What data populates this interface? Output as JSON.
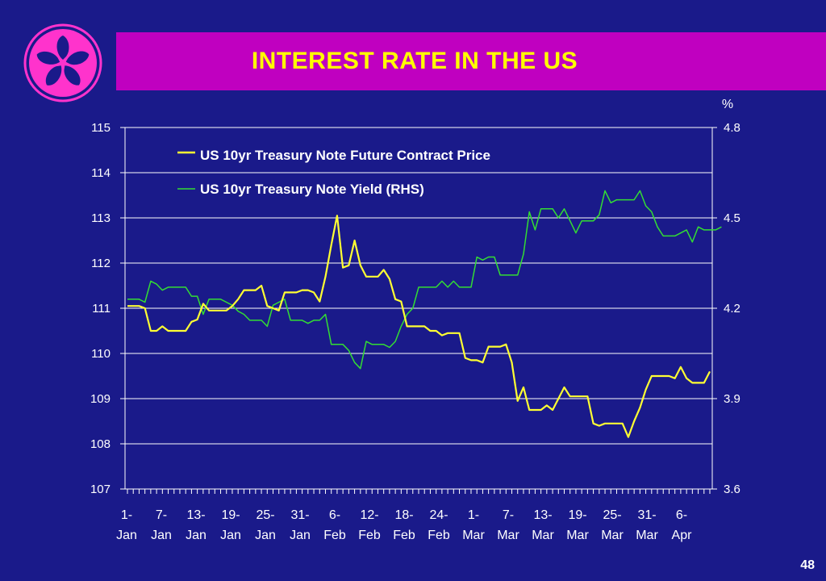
{
  "title": "INTEREST RATE IN THE US",
  "page_number": "48",
  "colors": {
    "background": "#1a1a8a",
    "title_bar": "#c000c0",
    "title_text": "#ffff00",
    "price": "#ffff33",
    "yield": "#33dd33",
    "axis": "#ffffff",
    "logo": "#ff33cc"
  },
  "logo_icon": "bauhinia-flower-icon",
  "chart_data": {
    "type": "line",
    "left_axis": {
      "ticks": [
        "115",
        "114",
        "113",
        "112",
        "111",
        "110",
        "109",
        "108",
        "107"
      ],
      "range": [
        107,
        115
      ]
    },
    "right_axis": {
      "unit": "%",
      "ticks": [
        "4.8",
        "4.5",
        "4.2",
        "3.9",
        "3.6"
      ],
      "range": [
        3.6,
        4.8
      ]
    },
    "x_labels": [
      [
        "1-",
        "Jan"
      ],
      [
        "7-",
        "Jan"
      ],
      [
        "13-",
        "Jan"
      ],
      [
        "19-",
        "Jan"
      ],
      [
        "25-",
        "Jan"
      ],
      [
        "31-",
        "Jan"
      ],
      [
        "6-",
        "Feb"
      ],
      [
        "12-",
        "Feb"
      ],
      [
        "18-",
        "Feb"
      ],
      [
        "24-",
        "Feb"
      ],
      [
        "1-",
        "Mar"
      ],
      [
        "7-",
        "Mar"
      ],
      [
        "13-",
        "Mar"
      ],
      [
        "19-",
        "Mar"
      ],
      [
        "25-",
        "Mar"
      ],
      [
        "31-",
        "Mar"
      ],
      [
        "6-",
        "Apr"
      ]
    ],
    "series": [
      {
        "name": "US 10yr Treasury Note Future Contract Price",
        "axis": "left",
        "values": [
          111.05,
          111.05,
          111.05,
          111.0,
          110.5,
          110.5,
          110.6,
          110.5,
          110.5,
          110.5,
          110.5,
          110.7,
          110.75,
          111.1,
          110.95,
          110.95,
          110.95,
          110.95,
          111.05,
          111.2,
          111.4,
          111.4,
          111.4,
          111.5,
          111.05,
          111.0,
          110.95,
          111.35,
          111.35,
          111.35,
          111.4,
          111.4,
          111.35,
          111.15,
          111.7,
          112.4,
          113.05,
          111.9,
          111.95,
          112.5,
          111.95,
          111.7,
          111.7,
          111.7,
          111.85,
          111.65,
          111.2,
          111.15,
          110.6,
          110.6,
          110.6,
          110.6,
          110.5,
          110.5,
          110.4,
          110.45,
          110.45,
          110.45,
          109.9,
          109.85,
          109.85,
          109.8,
          110.15,
          110.15,
          110.15,
          110.2,
          109.8,
          108.95,
          109.25,
          108.75,
          108.75,
          108.75,
          108.85,
          108.75,
          109.0,
          109.25,
          109.05,
          109.05,
          109.05,
          109.05,
          108.45,
          108.4,
          108.45,
          108.45,
          108.45,
          108.45,
          108.15,
          108.5,
          108.8,
          109.2,
          109.5,
          109.5,
          109.5,
          109.5,
          109.45,
          109.7,
          109.45,
          109.35,
          109.35,
          109.35,
          109.6
        ]
      },
      {
        "name": "US 10yr Treasury Note Yield (RHS)",
        "axis": "right",
        "values": [
          4.23,
          4.23,
          4.23,
          4.22,
          4.29,
          4.28,
          4.26,
          4.27,
          4.27,
          4.27,
          4.27,
          4.24,
          4.24,
          4.18,
          4.23,
          4.23,
          4.23,
          4.22,
          4.21,
          4.19,
          4.18,
          4.16,
          4.16,
          4.16,
          4.14,
          4.21,
          4.22,
          4.23,
          4.16,
          4.16,
          4.16,
          4.15,
          4.16,
          4.16,
          4.18,
          4.08,
          4.08,
          4.08,
          4.06,
          4.02,
          4.0,
          4.09,
          4.08,
          4.08,
          4.08,
          4.07,
          4.09,
          4.14,
          4.18,
          4.2,
          4.27,
          4.27,
          4.27,
          4.27,
          4.29,
          4.27,
          4.29,
          4.27,
          4.27,
          4.27,
          4.37,
          4.36,
          4.37,
          4.37,
          4.31,
          4.31,
          4.31,
          4.31,
          4.38,
          4.52,
          4.46,
          4.53,
          4.53,
          4.53,
          4.5,
          4.53,
          4.49,
          4.45,
          4.49,
          4.49,
          4.49,
          4.51,
          4.59,
          4.55,
          4.56,
          4.56,
          4.56,
          4.56,
          4.59,
          4.54,
          4.52,
          4.47,
          4.44,
          4.44,
          4.44,
          4.45,
          4.46,
          4.42,
          4.47,
          4.46,
          4.46,
          4.46,
          4.47
        ]
      }
    ]
  }
}
